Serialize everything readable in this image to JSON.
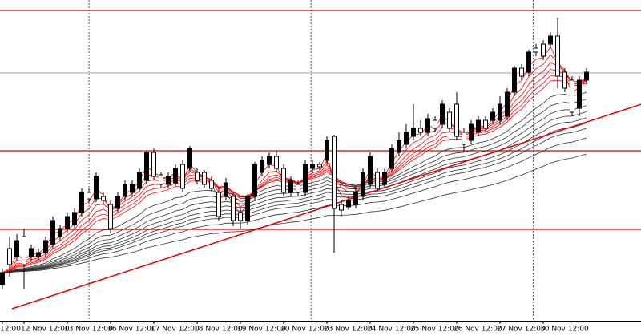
{
  "chart_data": {
    "type": "candlestick",
    "ylim": [
      0,
      400
    ],
    "categories": [
      "12:00",
      null,
      null,
      "12 Nov 12:00",
      null,
      null,
      null,
      null,
      null,
      "13 Nov 12:00",
      null,
      null,
      null,
      null,
      null,
      "16 Nov 12:00",
      null,
      null,
      null,
      null,
      null,
      "17 Nov 12:00",
      null,
      null,
      null,
      null,
      null,
      "18 Nov 12:00",
      null,
      null,
      null,
      null,
      null,
      "19 Nov 12:00",
      null,
      null,
      null,
      null,
      null,
      "20 Nov 12:00",
      null,
      null,
      null,
      null,
      null,
      "23 Nov 12:00",
      null,
      null,
      null,
      null,
      null,
      "24 Nov 12:00",
      null,
      null,
      null,
      null,
      null,
      "25 Nov 12:00",
      null,
      null,
      null,
      null,
      null,
      "26 Nov 12:00",
      null,
      null,
      null,
      null,
      null,
      "27 Nov 12:00",
      null,
      null,
      null,
      null,
      null,
      "30 Nov 12:00",
      null,
      null,
      null,
      null,
      null,
      null
    ],
    "open": [
      45,
      90,
      80,
      105,
      80,
      80,
      85,
      95,
      105,
      115,
      120,
      135,
      160,
      152,
      155,
      145,
      140,
      155,
      160,
      165,
      175,
      210,
      182,
      170,
      172,
      195,
      190,
      185,
      185,
      175,
      160,
      155,
      155,
      135,
      125,
      155,
      185,
      195,
      205,
      190,
      160,
      170,
      160,
      190,
      195,
      200,
      230,
      145,
      142,
      145,
      155,
      170,
      185,
      170,
      190,
      210,
      220,
      230,
      240,
      235,
      250,
      245,
      260,
      270,
      235,
      225,
      235,
      250,
      250,
      250,
      255,
      285,
      315,
      310,
      340,
      345,
      345,
      355,
      310,
      300,
      265,
      300
    ],
    "high": [
      65,
      105,
      108,
      115,
      95,
      90,
      105,
      130,
      120,
      135,
      140,
      165,
      165,
      185,
      160,
      150,
      160,
      175,
      175,
      190,
      212,
      215,
      185,
      185,
      195,
      200,
      218,
      190,
      188,
      180,
      165,
      178,
      160,
      140,
      158,
      198,
      205,
      210,
      212,
      195,
      180,
      175,
      200,
      200,
      198,
      230,
      232,
      150,
      155,
      165,
      190,
      210,
      190,
      190,
      220,
      235,
      245,
      270,
      250,
      258,
      255,
      275,
      265,
      285,
      240,
      250,
      255,
      255,
      265,
      280,
      290,
      318,
      320,
      338,
      345,
      350,
      360,
      378,
      315,
      305,
      305,
      315
    ],
    "low": [
      40,
      55,
      75,
      40,
      75,
      75,
      80,
      90,
      100,
      110,
      115,
      130,
      148,
      148,
      145,
      110,
      135,
      150,
      155,
      160,
      170,
      175,
      165,
      165,
      168,
      160,
      185,
      170,
      165,
      160,
      125,
      150,
      118,
      115,
      120,
      150,
      180,
      190,
      185,
      155,
      155,
      155,
      155,
      185,
      188,
      195,
      85,
      130,
      138,
      140,
      150,
      165,
      160,
      165,
      185,
      205,
      215,
      225,
      230,
      230,
      235,
      240,
      235,
      225,
      210,
      220,
      230,
      235,
      245,
      245,
      250,
      280,
      300,
      305,
      330,
      325,
      340,
      290,
      285,
      255,
      255,
      295
    ],
    "close": [
      60,
      70,
      100,
      70,
      90,
      85,
      100,
      125,
      115,
      130,
      135,
      160,
      152,
      180,
      150,
      115,
      155,
      170,
      170,
      185,
      210,
      180,
      170,
      180,
      190,
      165,
      215,
      175,
      170,
      165,
      130,
      172,
      125,
      125,
      155,
      195,
      200,
      205,
      190,
      160,
      175,
      160,
      195,
      195,
      192,
      225,
      140,
      138,
      150,
      160,
      185,
      205,
      165,
      185,
      215,
      225,
      235,
      240,
      235,
      252,
      240,
      270,
      240,
      230,
      220,
      245,
      250,
      240,
      260,
      270,
      285,
      315,
      305,
      335,
      335,
      330,
      355,
      305,
      290,
      260,
      300,
      310
    ],
    "bull_color": "#000000",
    "bear_color": "#ffffff",
    "hlines": [
      {
        "value": 387,
        "color": "#e00000"
      },
      {
        "value": 309,
        "color": "#a0a0a0"
      },
      {
        "value": 212,
        "color": "#e00000"
      },
      {
        "value": 114,
        "color": "#e00000"
      }
    ],
    "trendline": {
      "x": [
        1.33,
        88.6
      ],
      "y": [
        15,
        270
      ],
      "color": "#e00000"
    },
    "separators": [
      12,
      42.8,
      73.6
    ],
    "ma": [
      {
        "color": "#ff0000",
        "periods": [
          3,
          5,
          7,
          9,
          11,
          13
        ]
      },
      {
        "color": "#333333",
        "periods": [
          20,
          25,
          30,
          35,
          40,
          45,
          50,
          60,
          80
        ]
      }
    ]
  }
}
